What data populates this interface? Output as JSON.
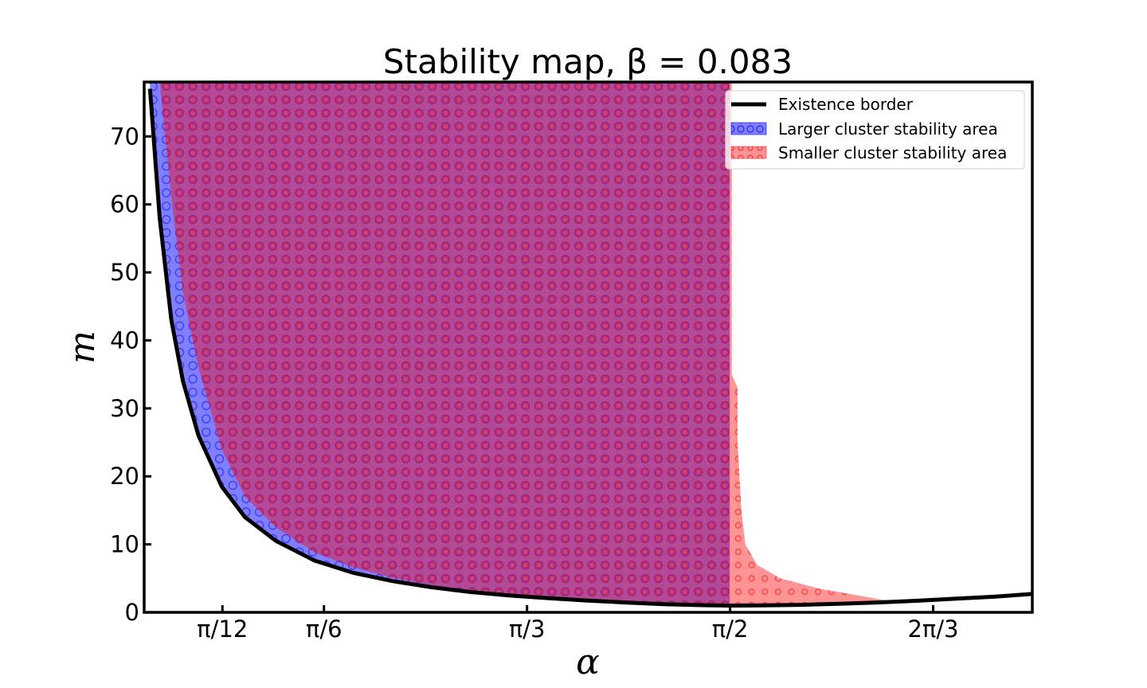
{
  "chart_data": {
    "type": "area",
    "title": "Stability map, β = 0.083",
    "xlabel": "α",
    "ylabel": "m",
    "xlim": [
      0.06,
      2.35
    ],
    "ylim": [
      0,
      78
    ],
    "x_ticks": [
      {
        "value": 0.2618,
        "label": "π/12"
      },
      {
        "value": 0.5236,
        "label": "π/6"
      },
      {
        "value": 1.0472,
        "label": "π/3"
      },
      {
        "value": 1.5708,
        "label": "π/2"
      },
      {
        "value": 2.0944,
        "label": "2π/3"
      }
    ],
    "y_ticks": [
      0,
      10,
      20,
      30,
      40,
      50,
      60,
      70
    ],
    "grid": false,
    "legend": {
      "position": "top-right",
      "entries": [
        {
          "label": "Existence border",
          "kind": "line",
          "color": "#000000"
        },
        {
          "label": "Larger cluster stability area",
          "kind": "patch",
          "color": "#0000ff"
        },
        {
          "label": "Smaller cluster stability area",
          "kind": "patch",
          "color": "#ff0000"
        }
      ]
    },
    "series": [
      {
        "name": "Existence border",
        "kind": "line",
        "color": "#000000",
        "x": [
          0.075,
          0.1,
          0.13,
          0.16,
          0.2,
          0.26,
          0.32,
          0.4,
          0.5,
          0.6,
          0.7,
          0.8,
          0.9,
          1.0,
          1.1,
          1.2,
          1.3,
          1.4,
          1.5,
          1.57,
          1.65,
          1.75,
          1.85,
          1.95,
          2.05,
          2.15,
          2.25,
          2.35
        ],
        "y": [
          77,
          58,
          43,
          34,
          26,
          18.5,
          14,
          10.5,
          7.6,
          5.8,
          4.6,
          3.7,
          3.0,
          2.5,
          2.1,
          1.75,
          1.45,
          1.2,
          1.05,
          1.0,
          1.02,
          1.1,
          1.25,
          1.45,
          1.7,
          2.0,
          2.3,
          2.7
        ]
      },
      {
        "name": "Larger cluster stability area",
        "kind": "area",
        "color": "#0000ff",
        "x": [
          0.075,
          0.1,
          0.13,
          0.16,
          0.2,
          0.26,
          0.32,
          0.4,
          0.5,
          0.6,
          0.7,
          0.8,
          0.9,
          1.0,
          1.1,
          1.2,
          1.3,
          1.4,
          1.5,
          1.57
        ],
        "y_lower": [
          77,
          58,
          43,
          34,
          26,
          18.5,
          14,
          10.5,
          7.6,
          5.8,
          4.6,
          3.7,
          3.0,
          2.5,
          2.1,
          1.75,
          1.45,
          1.2,
          1.05,
          1.0
        ],
        "y_upper": 78
      },
      {
        "name": "Smaller cluster stability area",
        "kind": "area",
        "color": "#ff0000",
        "x_lower_boundary": [
          0.1,
          0.13,
          0.16,
          0.2,
          0.26,
          0.32,
          0.4,
          0.5,
          0.6,
          0.7,
          0.8,
          0.9,
          1.0,
          1.1,
          1.2,
          1.3,
          1.4,
          1.5,
          1.57
        ],
        "y_lower": [
          78,
          61,
          47,
          36,
          24,
          17,
          12.5,
          8.8,
          6.6,
          5.1,
          4.0,
          3.3,
          2.7,
          2.25,
          1.85,
          1.55,
          1.3,
          1.1,
          1.0
        ],
        "right_boundary": {
          "m": [
            78,
            35,
            33,
            25,
            20,
            15,
            10,
            7,
            5,
            3.5,
            2.5,
            1.7
          ],
          "alpha": [
            1.575,
            1.575,
            1.59,
            1.59,
            1.595,
            1.6,
            1.61,
            1.64,
            1.7,
            1.8,
            1.9,
            1.98
          ]
        }
      }
    ]
  }
}
